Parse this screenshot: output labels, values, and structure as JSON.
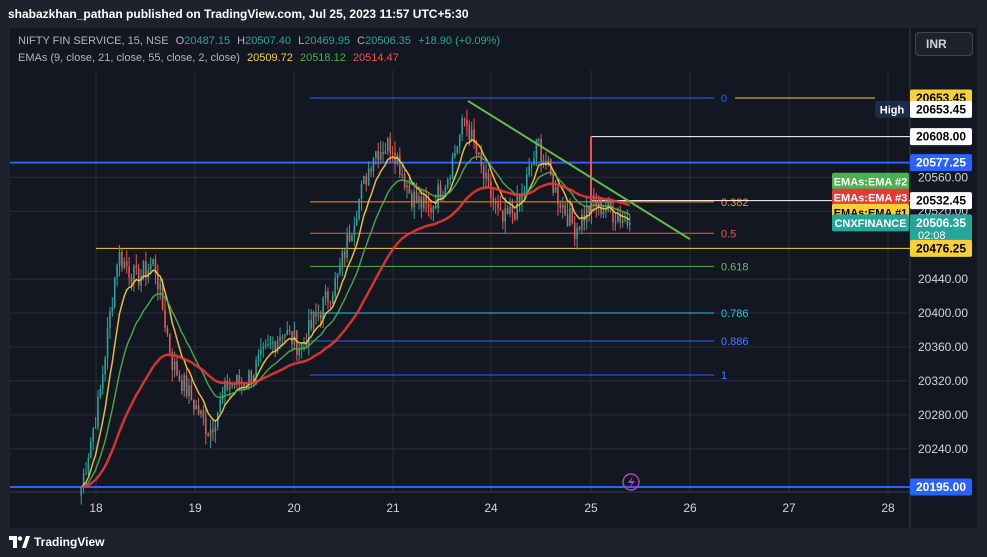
{
  "publisher": "shabazkhan_pathan published on TradingView.com, Jul 25, 2023 11:57 UTC+5:30",
  "legend": {
    "symbol": "NIFTY FIN SERVICE, 15, NSE",
    "open_label": "O",
    "open": "20487.15",
    "high_label": "H",
    "high": "20507.40",
    "low_label": "L",
    "low": "20469.95",
    "close_label": "C",
    "close": "20506.35",
    "change": "+18.90 (+0.09%)",
    "ema_label": "EMAs (9, close, 21, close, 55, close, 2, close)",
    "ema9": "20509.72",
    "ema21": "20518.12",
    "ema55": "20514.47"
  },
  "currency_button": "INR",
  "brand": "TradingView",
  "colors": {
    "up": "#26a69a",
    "down": "#ef5350",
    "ema9": "#f7d038",
    "ema21": "#4caf50",
    "ema55": "#e53935",
    "hline": "#2962ff",
    "trendline": "#66bb44"
  },
  "chart_data": {
    "type": "candlestick",
    "symbol": "NIFTY FIN SERVICE",
    "interval": "15",
    "exchange": "NSE",
    "ylim": [
      20190,
      20680
    ],
    "y_ticks": [
      20240,
      20280,
      20320,
      20360,
      20400,
      20440,
      20520,
      20560
    ],
    "x_ticks": [
      "18",
      "19",
      "20",
      "21",
      "24",
      "25",
      "26",
      "27",
      "28"
    ],
    "price_path": [
      [
        "18",
        20195
      ],
      [
        "18",
        20300
      ],
      [
        "18",
        20470
      ],
      [
        "18",
        20440
      ],
      [
        "18",
        20460
      ],
      [
        "19",
        20340
      ],
      [
        "19",
        20300
      ],
      [
        "19",
        20260
      ],
      [
        "19",
        20315
      ],
      [
        "20",
        20320
      ],
      [
        "20",
        20350
      ],
      [
        "20",
        20380
      ],
      [
        "20",
        20360
      ],
      [
        "20",
        20400
      ],
      [
        "21",
        20440
      ],
      [
        "21",
        20520
      ],
      [
        "21",
        20590
      ],
      [
        "21",
        20600
      ],
      [
        "21",
        20540
      ],
      [
        "21",
        20520
      ],
      [
        "21",
        20560
      ],
      [
        "24",
        20630
      ],
      [
        "24",
        20560
      ],
      [
        "24",
        20505
      ],
      [
        "24",
        20530
      ],
      [
        "24",
        20600
      ],
      [
        "24",
        20540
      ],
      [
        "24",
        20500
      ],
      [
        "25",
        20530
      ],
      [
        "25",
        20520
      ],
      [
        "25",
        20506.35
      ]
    ],
    "series": [
      {
        "name": "EMA 9",
        "period": 9,
        "last": 20509.72
      },
      {
        "name": "EMA 21",
        "period": 21,
        "last": 20518.12
      },
      {
        "name": "EMA 55",
        "period": 55,
        "last": 20514.47
      }
    ],
    "fibonacci": [
      {
        "level": "0",
        "price": 20653.45
      },
      {
        "level": "0.382",
        "price": 20531
      },
      {
        "level": "0.5",
        "price": 20494
      },
      {
        "level": "0.618",
        "price": 20455
      },
      {
        "level": "0.786",
        "price": 20400
      },
      {
        "level": "0.886",
        "price": 20367
      },
      {
        "level": "1",
        "price": 20327
      }
    ],
    "horizontal_lines": [
      {
        "price": 20577.25,
        "label": "20577.25"
      },
      {
        "price": 20195.0,
        "label": "20195.00"
      }
    ],
    "segments": [
      {
        "name": "high-line",
        "price": 20653.45
      },
      {
        "name": "white-line",
        "price": 20608.0
      },
      {
        "name": "ema-level-line",
        "price": 20532.45
      },
      {
        "name": "yellow-low-line",
        "price": 20476.25
      }
    ],
    "price_tags": [
      {
        "text": "20653.45",
        "price": 20653.45,
        "color": "#f7d038",
        "fg": "#000000"
      },
      {
        "text": "20653.45",
        "price": 20640,
        "color": "#ffffff",
        "fg": "#000000"
      },
      {
        "text": "20608.00",
        "price": 20608,
        "color": "#ffffff",
        "fg": "#000000"
      },
      {
        "text": "20577.25",
        "price": 20577.25,
        "color": "#2962ff",
        "fg": "#ffffff"
      },
      {
        "text": "20532.45",
        "price": 20532.45,
        "color": "#ffffff",
        "fg": "#000000"
      },
      {
        "text": "20506.35",
        "price": 20506.35,
        "color": "#26a69a",
        "fg": "#ffffff",
        "sub": "02:08"
      },
      {
        "text": "20476.25",
        "price": 20476.25,
        "color": "#f7d038",
        "fg": "#000000"
      },
      {
        "text": "20195.00",
        "price": 20195.0,
        "color": "#2962ff",
        "fg": "#ffffff"
      }
    ],
    "side_labels": [
      {
        "text": "High",
        "color": "#1e2a4a",
        "fg": "#ffffff"
      },
      {
        "text": "EMAs:EMA #2",
        "color": "#4caf50",
        "fg": "#ffffff"
      },
      {
        "text": "EMAs:EMA #3",
        "color": "#e53935",
        "fg": "#ffffff"
      },
      {
        "text": "EMAs:EMA #1",
        "color": "#f7d038",
        "fg": "#000000"
      },
      {
        "text": "CNXFINANCE",
        "color": "#26a69a",
        "fg": "#ffffff"
      }
    ],
    "trendline": {
      "from": [
        "21",
        20650
      ],
      "to": [
        "26",
        20487
      ]
    },
    "grid": true
  }
}
